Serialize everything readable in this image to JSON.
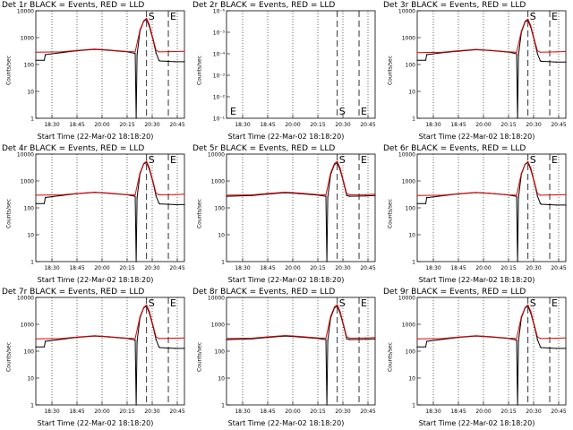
{
  "chart_data": [
    {
      "type": "line",
      "title": "Det 1r BLACK = Events, RED = LLD",
      "xlabel": "Start Time (22-Mar-02 18:18:20)",
      "ylabel": "Counts/sec",
      "xticks": [
        "18:30",
        "18:45",
        "20:00",
        "20:15",
        "20:30",
        "20:45"
      ],
      "yticks": [
        "1",
        "10",
        "100",
        "1000",
        "10000"
      ],
      "ylim": [
        1,
        12000
      ],
      "yscale": "log",
      "markers": [
        {
          "label": "S",
          "x": "20:15"
        },
        {
          "label": "E",
          "x": "20:38"
        }
      ],
      "series": [
        {
          "name": "BLACK",
          "color": "#000000",
          "x": [
            "18:18",
            "18:27",
            "18:28",
            "18:45",
            "19:00",
            "19:20",
            "19:35",
            "19:55",
            "20:03",
            "20:04",
            "20:05",
            "20:08",
            "20:12",
            "20:15",
            "20:18",
            "20:22",
            "20:25",
            "20:28",
            "20:29",
            "20:45",
            "20:55"
          ],
          "values": [
            160,
            160,
            260,
            310,
            360,
            410,
            380,
            330,
            290,
            1,
            260,
            2000,
            4800,
            5600,
            3000,
            900,
            300,
            160,
            150,
            140,
            140
          ]
        },
        {
          "name": "RED",
          "color": "#e00000",
          "x": [
            "18:18",
            "18:45",
            "19:00",
            "19:20",
            "19:35",
            "19:55",
            "20:03",
            "20:08",
            "20:12",
            "20:15",
            "20:18",
            "20:22",
            "20:25",
            "20:28",
            "20:45",
            "20:55"
          ],
          "values": [
            320,
            330,
            370,
            420,
            390,
            340,
            330,
            2200,
            5000,
            6200,
            3500,
            1000,
            380,
            330,
            340,
            350
          ]
        }
      ]
    },
    {
      "type": "line",
      "title": "Det 2r BLACK = Events, RED = LLD",
      "xlabel": "Start Time (22-Mar-02 18:18:20)",
      "ylabel": "Counts/sec",
      "xticks": [
        "18:30",
        "18:45",
        "20:00",
        "20:15",
        "20:30",
        "20:45"
      ],
      "yticks": [
        "10⁻¹",
        "10⁻²",
        "10⁻³",
        "10⁻⁴",
        "10⁻⁵",
        "10⁻⁶"
      ],
      "ylim": [
        1e-06,
        1e-12
      ],
      "yscale": "log",
      "markers": [
        {
          "label": "S",
          "x": "20:15"
        },
        {
          "label": "E",
          "x": "20:38"
        },
        {
          "label": "E",
          "x": "18:18"
        }
      ],
      "series": []
    },
    {
      "type": "line",
      "title": "Det 3r BLACK = Events, RED = LLD",
      "xlabel": "Start Time (22-Mar-02 18:18:20)",
      "ylabel": "Counts/sec",
      "xticks": [
        "18:30",
        "18:45",
        "20:00",
        "20:15",
        "20:30",
        "20:45"
      ],
      "yticks": [
        "1",
        "10",
        "100",
        "1000",
        "10000"
      ],
      "ylim": [
        1,
        12000
      ],
      "yscale": "log",
      "markers": [
        {
          "label": "S",
          "x": "20:15"
        },
        {
          "label": "E",
          "x": "20:38"
        }
      ],
      "series": [
        {
          "name": "BLACK",
          "color": "#000000",
          "x": [
            "18:18",
            "18:27",
            "18:28",
            "18:45",
            "19:00",
            "19:20",
            "19:35",
            "19:55",
            "20:03",
            "20:04",
            "20:05",
            "20:08",
            "20:12",
            "20:15",
            "20:18",
            "20:22",
            "20:25",
            "20:28",
            "20:29",
            "20:45",
            "20:55"
          ],
          "values": [
            160,
            160,
            260,
            310,
            350,
            400,
            370,
            320,
            280,
            1,
            250,
            1800,
            4500,
            5200,
            2800,
            800,
            280,
            150,
            145,
            135,
            135
          ]
        },
        {
          "name": "RED",
          "color": "#e00000",
          "x": [
            "18:18",
            "18:45",
            "19:00",
            "19:20",
            "19:35",
            "19:55",
            "20:03",
            "20:08",
            "20:12",
            "20:15",
            "20:18",
            "20:22",
            "20:25",
            "20:28",
            "20:45",
            "20:55"
          ],
          "values": [
            310,
            320,
            360,
            410,
            380,
            330,
            320,
            2000,
            4800,
            5800,
            3200,
            900,
            360,
            320,
            330,
            340
          ]
        }
      ]
    },
    {
      "type": "line",
      "title": "Det 4r BLACK = Events, RED = LLD",
      "xlabel": "Start Time (22-Mar-02 18:18:20)",
      "ylabel": "Counts/sec",
      "xticks": [
        "18:30",
        "18:45",
        "20:00",
        "20:15",
        "20:30",
        "20:45"
      ],
      "yticks": [
        "1",
        "10",
        "100",
        "1000",
        "10000"
      ],
      "ylim": [
        1,
        12000
      ],
      "yscale": "log",
      "markers": [
        {
          "label": "S",
          "x": "20:15"
        },
        {
          "label": "E",
          "x": "20:38"
        }
      ],
      "series": [
        {
          "name": "BLACK",
          "color": "#000000",
          "x": [
            "18:18",
            "18:27",
            "18:28",
            "18:45",
            "19:00",
            "19:20",
            "19:35",
            "19:55",
            "20:03",
            "20:04",
            "20:05",
            "20:08",
            "20:12",
            "20:15",
            "20:18",
            "20:22",
            "20:25",
            "20:28",
            "20:29",
            "20:45",
            "20:55"
          ],
          "values": [
            160,
            160,
            270,
            320,
            370,
            420,
            390,
            340,
            300,
            1,
            270,
            2100,
            5000,
            5800,
            3100,
            950,
            310,
            165,
            155,
            145,
            145
          ]
        },
        {
          "name": "RED",
          "color": "#e00000",
          "x": [
            "18:18",
            "18:45",
            "19:00",
            "19:20",
            "19:35",
            "19:55",
            "20:03",
            "20:08",
            "20:12",
            "20:15",
            "20:18",
            "20:22",
            "20:25",
            "20:28",
            "20:45",
            "20:55"
          ],
          "values": [
            330,
            340,
            380,
            430,
            400,
            350,
            340,
            2300,
            5200,
            6400,
            3600,
            1050,
            390,
            340,
            350,
            360
          ]
        }
      ]
    },
    {
      "type": "line",
      "title": "Det 5r BLACK = Events, RED = LLD",
      "xlabel": "Start Time (22-Mar-02 18:18:20)",
      "ylabel": "Counts/sec",
      "xticks": [
        "18:30",
        "18:45",
        "20:00",
        "20:15",
        "20:30",
        "20:45"
      ],
      "yticks": [
        "1",
        "10",
        "100",
        "1000",
        "10000"
      ],
      "ylim": [
        1,
        12000
      ],
      "yscale": "log",
      "markers": [
        {
          "label": "S",
          "x": "20:15"
        },
        {
          "label": "E",
          "x": "20:38"
        }
      ],
      "series": [
        {
          "name": "BLACK",
          "color": "#000000",
          "x": [
            "18:18",
            "18:45",
            "19:00",
            "19:20",
            "19:35",
            "19:55",
            "20:03",
            "20:04",
            "20:05",
            "20:08",
            "20:12",
            "20:15",
            "20:18",
            "20:22",
            "20:25",
            "20:28",
            "20:45",
            "20:55"
          ],
          "values": [
            300,
            320,
            360,
            410,
            380,
            330,
            300,
            1,
            280,
            2000,
            4800,
            5600,
            3000,
            900,
            320,
            300,
            310,
            320
          ]
        },
        {
          "name": "RED",
          "color": "#e00000",
          "x": [
            "18:18",
            "18:45",
            "19:00",
            "19:20",
            "19:35",
            "19:55",
            "20:03",
            "20:08",
            "20:12",
            "20:15",
            "20:18",
            "20:22",
            "20:25",
            "20:28",
            "20:45",
            "20:55"
          ],
          "values": [
            330,
            340,
            380,
            430,
            400,
            350,
            340,
            2300,
            5200,
            6300,
            3500,
            1000,
            380,
            340,
            350,
            360
          ]
        }
      ]
    },
    {
      "type": "line",
      "title": "Det 6r BLACK = Events, RED = LLD",
      "xlabel": "Start Time (22-Mar-02 18:18:20)",
      "ylabel": "Counts/sec",
      "xticks": [
        "18:30",
        "18:45",
        "20:00",
        "20:15",
        "20:30",
        "20:45"
      ],
      "yticks": [
        "1",
        "10",
        "100",
        "1000",
        "10000"
      ],
      "ylim": [
        1,
        12000
      ],
      "yscale": "log",
      "markers": [
        {
          "label": "S",
          "x": "20:15"
        },
        {
          "label": "E",
          "x": "20:38"
        }
      ],
      "series": [
        {
          "name": "BLACK",
          "color": "#000000",
          "x": [
            "18:18",
            "18:27",
            "18:28",
            "18:45",
            "19:00",
            "19:20",
            "19:35",
            "19:55",
            "20:03",
            "20:04",
            "20:05",
            "20:08",
            "20:12",
            "20:15",
            "20:18",
            "20:22",
            "20:25",
            "20:28",
            "20:29",
            "20:45",
            "20:55"
          ],
          "values": [
            160,
            160,
            265,
            315,
            365,
            415,
            385,
            335,
            295,
            1,
            265,
            2050,
            4900,
            5700,
            3050,
            920,
            305,
            160,
            150,
            140,
            140
          ]
        },
        {
          "name": "RED",
          "color": "#e00000",
          "x": [
            "18:18",
            "18:45",
            "19:00",
            "19:20",
            "19:35",
            "19:55",
            "20:03",
            "20:08",
            "20:12",
            "20:15",
            "20:18",
            "20:22",
            "20:25",
            "20:28",
            "20:45",
            "20:55"
          ],
          "values": [
            320,
            330,
            370,
            420,
            390,
            340,
            330,
            2200,
            5000,
            6200,
            3500,
            1000,
            380,
            330,
            340,
            350
          ]
        }
      ]
    },
    {
      "type": "line",
      "title": "Det 7r BLACK = Events, RED = LLD",
      "xlabel": "Start Time (22-Mar-02 18:18:20)",
      "ylabel": "Counts/sec",
      "xticks": [
        "18:30",
        "18:45",
        "20:00",
        "20:15",
        "20:30",
        "20:45"
      ],
      "yticks": [
        "1",
        "10",
        "100",
        "1000",
        "10000"
      ],
      "ylim": [
        1,
        12000
      ],
      "yscale": "log",
      "markers": [
        {
          "label": "S",
          "x": "20:15"
        },
        {
          "label": "E",
          "x": "20:38"
        }
      ],
      "series": [
        {
          "name": "BLACK",
          "color": "#000000",
          "x": [
            "18:18",
            "18:27",
            "18:28",
            "18:45",
            "19:00",
            "19:20",
            "19:35",
            "19:55",
            "20:03",
            "20:04",
            "20:05",
            "20:08",
            "20:12",
            "20:15",
            "20:18",
            "20:22",
            "20:25",
            "20:28",
            "20:29",
            "20:45",
            "20:55"
          ],
          "values": [
            160,
            160,
            260,
            310,
            360,
            410,
            380,
            330,
            290,
            1,
            260,
            2000,
            4800,
            5600,
            3000,
            900,
            300,
            160,
            150,
            140,
            140
          ]
        },
        {
          "name": "RED",
          "color": "#e00000",
          "x": [
            "18:18",
            "18:45",
            "19:00",
            "19:20",
            "19:35",
            "19:55",
            "20:03",
            "20:08",
            "20:12",
            "20:15",
            "20:18",
            "20:22",
            "20:25",
            "20:28",
            "20:45",
            "20:55"
          ],
          "values": [
            320,
            330,
            370,
            420,
            390,
            340,
            330,
            2200,
            5000,
            6200,
            3500,
            1000,
            380,
            330,
            340,
            350
          ]
        }
      ]
    },
    {
      "type": "line",
      "title": "Det 8r BLACK = Events, RED = LLD",
      "xlabel": "Start Time (22-Mar-02 18:18:20)",
      "ylabel": "Counts/sec",
      "xticks": [
        "18:30",
        "18:45",
        "20:00",
        "20:15",
        "20:30",
        "20:45"
      ],
      "yticks": [
        "1",
        "10",
        "100",
        "1000",
        "10000"
      ],
      "ylim": [
        1,
        12000
      ],
      "yscale": "log",
      "markers": [
        {
          "label": "S",
          "x": "20:15"
        },
        {
          "label": "E",
          "x": "20:38"
        }
      ],
      "series": [
        {
          "name": "BLACK",
          "color": "#000000",
          "x": [
            "18:18",
            "18:45",
            "19:00",
            "19:20",
            "19:35",
            "19:55",
            "20:03",
            "20:04",
            "20:05",
            "20:08",
            "20:12",
            "20:15",
            "20:18",
            "20:22",
            "20:25",
            "20:28",
            "20:45",
            "20:55"
          ],
          "values": [
            300,
            320,
            360,
            410,
            380,
            330,
            300,
            1,
            280,
            2000,
            4800,
            5600,
            3000,
            900,
            320,
            300,
            310,
            320
          ]
        },
        {
          "name": "RED",
          "color": "#e00000",
          "x": [
            "18:18",
            "18:45",
            "19:00",
            "19:20",
            "19:35",
            "19:55",
            "20:03",
            "20:08",
            "20:12",
            "20:15",
            "20:18",
            "20:22",
            "20:25",
            "20:28",
            "20:45",
            "20:55"
          ],
          "values": [
            330,
            340,
            380,
            430,
            400,
            350,
            340,
            2300,
            5200,
            6300,
            3500,
            1000,
            380,
            340,
            350,
            360
          ]
        }
      ]
    },
    {
      "type": "line",
      "title": "Det 9r BLACK = Events, RED = LLD",
      "xlabel": "Start Time (22-Mar-02 18:18:20)",
      "ylabel": "Counts/sec",
      "xticks": [
        "18:30",
        "18:45",
        "20:00",
        "20:15",
        "20:30",
        "20:45"
      ],
      "yticks": [
        "1",
        "10",
        "100",
        "1000",
        "10000"
      ],
      "ylim": [
        1,
        12000
      ],
      "yscale": "log",
      "markers": [
        {
          "label": "S",
          "x": "20:15"
        },
        {
          "label": "E",
          "x": "20:38"
        }
      ],
      "series": [
        {
          "name": "BLACK",
          "color": "#000000",
          "x": [
            "18:18",
            "18:27",
            "18:28",
            "18:45",
            "19:00",
            "19:20",
            "19:35",
            "19:55",
            "20:03",
            "20:04",
            "20:05",
            "20:08",
            "20:12",
            "20:15",
            "20:18",
            "20:22",
            "20:25",
            "20:28",
            "20:29",
            "20:45",
            "20:55"
          ],
          "values": [
            160,
            160,
            260,
            310,
            360,
            410,
            380,
            330,
            290,
            1,
            260,
            2000,
            4800,
            5600,
            3000,
            900,
            300,
            160,
            150,
            140,
            140
          ]
        },
        {
          "name": "RED",
          "color": "#e00000",
          "x": [
            "18:18",
            "18:45",
            "19:00",
            "19:20",
            "19:35",
            "19:55",
            "20:03",
            "20:08",
            "20:12",
            "20:15",
            "20:18",
            "20:22",
            "20:25",
            "20:28",
            "20:45",
            "20:55"
          ],
          "values": [
            320,
            330,
            370,
            420,
            390,
            340,
            330,
            2200,
            5000,
            6200,
            3500,
            1000,
            380,
            330,
            340,
            350
          ]
        }
      ]
    }
  ]
}
